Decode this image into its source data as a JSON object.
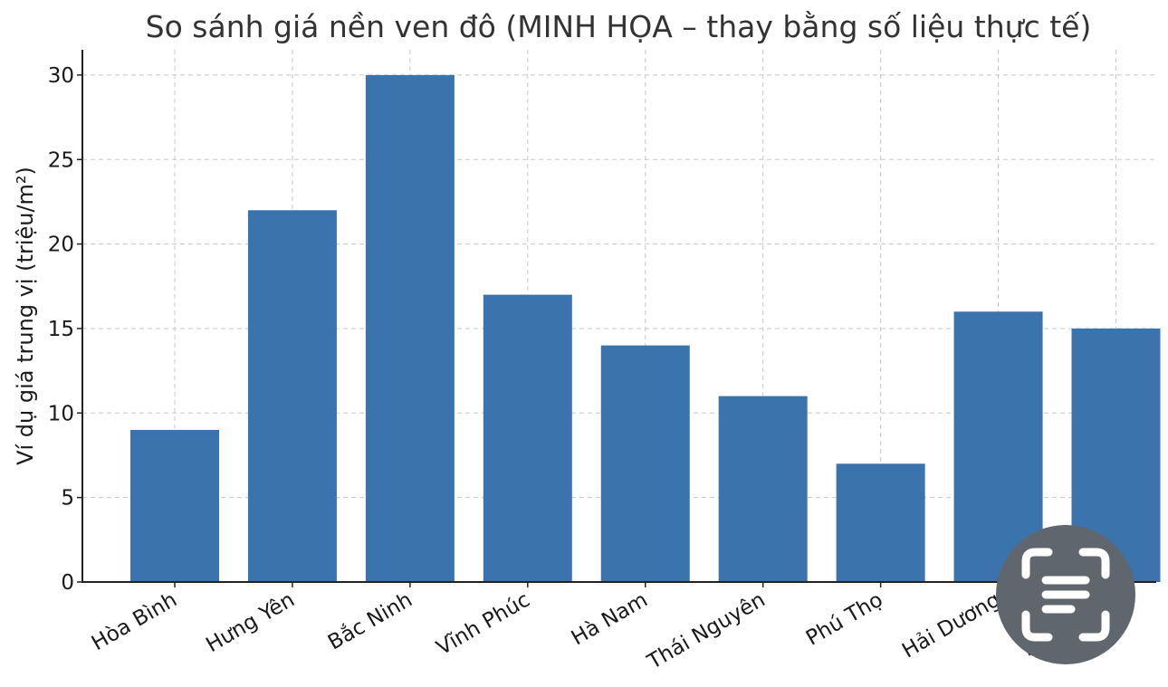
{
  "chart_data": {
    "type": "bar",
    "title": "So sánh giá nền ven đô (MINH HỌA – thay bằng số liệu thực tế)",
    "xlabel": "",
    "ylabel": "Ví dụ giá trung vị (triệu/m²)",
    "categories": [
      "Hòa Bình",
      "Hưng Yên",
      "Bắc Ninh",
      "Vĩnh Phúc",
      "Hà Nam",
      "Thái Nguyên",
      "Phú Thọ",
      "Hải Dương",
      "Bắc Giang"
    ],
    "values": [
      9,
      22,
      30,
      17,
      14,
      11,
      7,
      16,
      15
    ],
    "ylim": [
      0,
      31.5
    ],
    "yticks": [
      0,
      5,
      10,
      15,
      20,
      25,
      30
    ],
    "grid": true,
    "bar_color": "#3b73ad"
  },
  "overlay": {
    "icon": "scan-text-icon",
    "color": "#5f666e"
  }
}
